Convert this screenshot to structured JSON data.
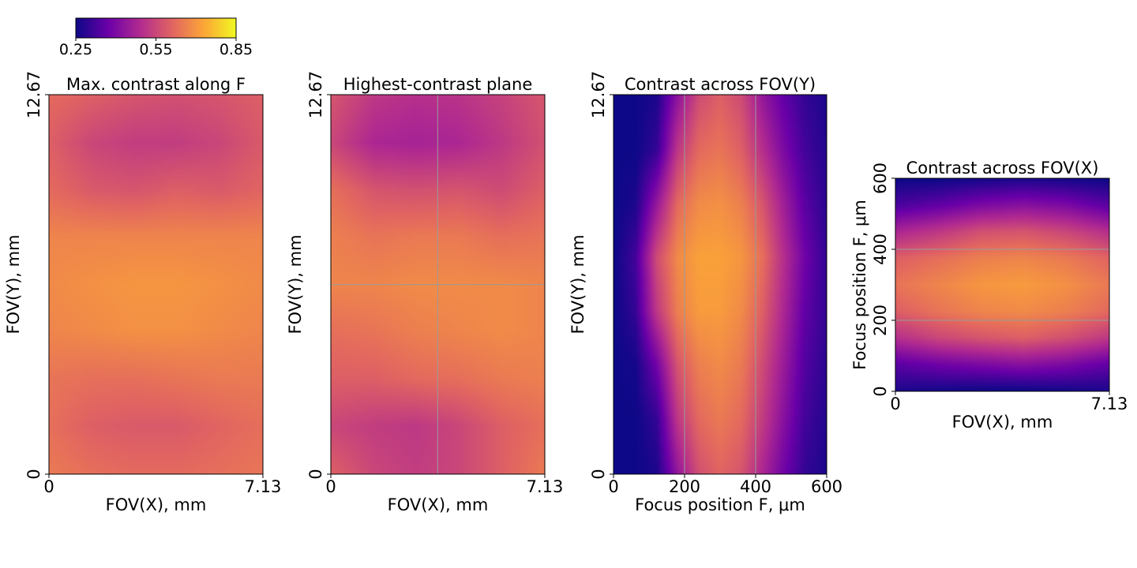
{
  "colormap": {
    "name": "plasma",
    "min": 0.25,
    "max": 0.85,
    "ticks": [
      "0.25",
      "0.55",
      "0.85"
    ],
    "stops": [
      "#0d0887",
      "#6a00a8",
      "#b12a90",
      "#e16462",
      "#fca636",
      "#f0f921"
    ]
  },
  "chart_data": [
    {
      "type": "heatmap",
      "title": "Max. contrast along F",
      "xlabel": "FOV(X), mm",
      "ylabel": "FOV(Y), mm",
      "xlim": [
        0,
        7.13
      ],
      "ylim": [
        0,
        12.67
      ],
      "xticks": [
        "0",
        "7.13"
      ],
      "yticks": [
        "0",
        "12.67"
      ],
      "grid": false,
      "crosshair_x": [],
      "crosshair_y": [],
      "z_rows_top_to_bottom": [
        [
          0.62,
          0.6,
          0.58,
          0.57,
          0.58,
          0.6
        ],
        [
          0.6,
          0.55,
          0.53,
          0.53,
          0.55,
          0.59
        ],
        [
          0.62,
          0.59,
          0.58,
          0.6,
          0.59,
          0.61
        ],
        [
          0.67,
          0.67,
          0.67,
          0.67,
          0.67,
          0.67
        ],
        [
          0.68,
          0.69,
          0.7,
          0.7,
          0.69,
          0.68
        ],
        [
          0.67,
          0.68,
          0.69,
          0.69,
          0.68,
          0.67
        ],
        [
          0.64,
          0.63,
          0.63,
          0.64,
          0.65,
          0.65
        ],
        [
          0.63,
          0.6,
          0.59,
          0.59,
          0.61,
          0.63
        ],
        [
          0.65,
          0.63,
          0.62,
          0.62,
          0.63,
          0.64
        ]
      ]
    },
    {
      "type": "heatmap",
      "title": "Highest-contrast plane",
      "xlabel": "FOV(X), mm",
      "ylabel": "FOV(Y), mm",
      "xlim": [
        0,
        7.13
      ],
      "ylim": [
        0,
        12.67
      ],
      "xticks": [
        "0",
        "7.13"
      ],
      "yticks": [
        "0",
        "12.67"
      ],
      "grid": false,
      "crosshair_x": [
        3.56
      ],
      "crosshair_y": [
        6.33
      ],
      "z_rows_top_to_bottom": [
        [
          0.58,
          0.52,
          0.5,
          0.51,
          0.54,
          0.58
        ],
        [
          0.55,
          0.48,
          0.47,
          0.48,
          0.52,
          0.57
        ],
        [
          0.63,
          0.58,
          0.57,
          0.58,
          0.56,
          0.6
        ],
        [
          0.66,
          0.64,
          0.65,
          0.65,
          0.63,
          0.64
        ],
        [
          0.67,
          0.67,
          0.68,
          0.68,
          0.68,
          0.67
        ],
        [
          0.63,
          0.64,
          0.66,
          0.67,
          0.68,
          0.67
        ],
        [
          0.6,
          0.6,
          0.62,
          0.63,
          0.65,
          0.66
        ],
        [
          0.55,
          0.53,
          0.52,
          0.55,
          0.6,
          0.63
        ],
        [
          0.6,
          0.55,
          0.53,
          0.55,
          0.6,
          0.65
        ]
      ]
    },
    {
      "type": "heatmap",
      "title": "Contrast across FOV(Y)",
      "xlabel": "Focus position F, μm",
      "ylabel": "FOV(Y), mm",
      "xlim": [
        0,
        600
      ],
      "ylim": [
        0,
        12.67
      ],
      "xticks": [
        "0",
        "200",
        "400",
        "600"
      ],
      "yticks": [
        "0",
        "12.67"
      ],
      "grid": false,
      "crosshair_x": [
        200,
        400
      ],
      "crosshair_y": [],
      "z_rows_top_to_bottom": [
        [
          0.25,
          0.25,
          0.27,
          0.43,
          0.56,
          0.6,
          0.56,
          0.44,
          0.36,
          0.3,
          0.27
        ],
        [
          0.25,
          0.25,
          0.3,
          0.52,
          0.62,
          0.64,
          0.6,
          0.5,
          0.4,
          0.32,
          0.28
        ],
        [
          0.25,
          0.27,
          0.44,
          0.62,
          0.68,
          0.69,
          0.66,
          0.58,
          0.46,
          0.35,
          0.29
        ],
        [
          0.25,
          0.32,
          0.56,
          0.68,
          0.72,
          0.72,
          0.7,
          0.63,
          0.5,
          0.38,
          0.3
        ],
        [
          0.25,
          0.3,
          0.52,
          0.66,
          0.71,
          0.71,
          0.68,
          0.6,
          0.48,
          0.36,
          0.3
        ],
        [
          0.25,
          0.26,
          0.38,
          0.58,
          0.66,
          0.68,
          0.65,
          0.56,
          0.45,
          0.34,
          0.29
        ],
        [
          0.25,
          0.25,
          0.3,
          0.52,
          0.62,
          0.65,
          0.62,
          0.53,
          0.42,
          0.32,
          0.28
        ],
        [
          0.25,
          0.25,
          0.27,
          0.44,
          0.57,
          0.61,
          0.58,
          0.48,
          0.38,
          0.3,
          0.27
        ]
      ]
    },
    {
      "type": "heatmap",
      "title": "Contrast across FOV(X)",
      "xlabel": "FOV(X), mm",
      "ylabel": "Focus position F, μm",
      "xlim": [
        0,
        7.13
      ],
      "ylim": [
        0,
        600
      ],
      "xticks": [
        "0",
        "7.13"
      ],
      "yticks": [
        "0",
        "200",
        "400",
        "600"
      ],
      "grid": false,
      "crosshair_x": [],
      "crosshair_y": [
        200,
        400
      ],
      "z_rows_top_to_bottom": [
        [
          0.25,
          0.25,
          0.26,
          0.27,
          0.26,
          0.25
        ],
        [
          0.33,
          0.36,
          0.4,
          0.42,
          0.4,
          0.35
        ],
        [
          0.48,
          0.52,
          0.57,
          0.58,
          0.55,
          0.5
        ],
        [
          0.6,
          0.63,
          0.66,
          0.67,
          0.65,
          0.61
        ],
        [
          0.64,
          0.67,
          0.7,
          0.71,
          0.69,
          0.65
        ],
        [
          0.6,
          0.64,
          0.67,
          0.68,
          0.66,
          0.62
        ],
        [
          0.5,
          0.55,
          0.58,
          0.6,
          0.57,
          0.52
        ],
        [
          0.35,
          0.38,
          0.4,
          0.42,
          0.4,
          0.36
        ],
        [
          0.27,
          0.26,
          0.25,
          0.25,
          0.26,
          0.27
        ]
      ]
    }
  ]
}
